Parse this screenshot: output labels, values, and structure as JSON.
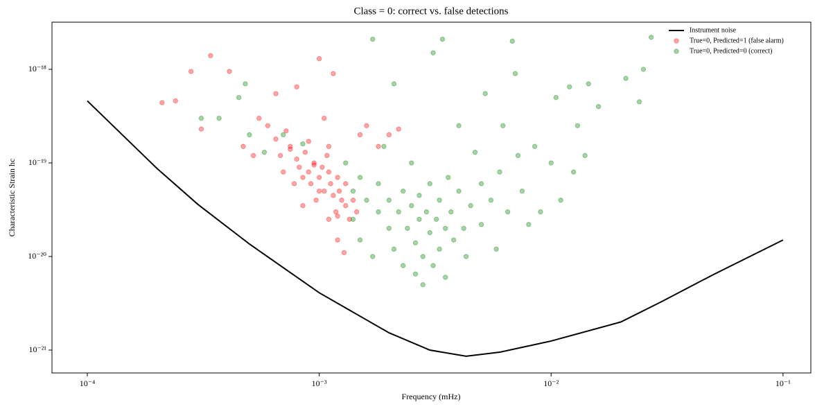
{
  "chart_data": {
    "type": "scatter",
    "title": "Class = 0: correct vs. false detections",
    "xlabel": "Frequency (mHz)",
    "ylabel": "Characteristic Strain hc",
    "xscale": "log",
    "yscale": "log",
    "xlim": [
      7.04e-05,
      0.1318
    ],
    "ylim": [
      5.7e-22,
      3.19e-18
    ],
    "xticks": [
      {
        "value": 0.0001,
        "label": "10⁻⁴"
      },
      {
        "value": 0.001,
        "label": "10⁻³"
      },
      {
        "value": 0.01,
        "label": "10⁻²"
      },
      {
        "value": 0.1,
        "label": "10⁻¹"
      }
    ],
    "yticks": [
      {
        "value": 1e-21,
        "label": "10⁻²¹"
      },
      {
        "value": 1e-20,
        "label": "10⁻²⁰"
      },
      {
        "value": 1e-19,
        "label": "10⁻¹⁹"
      },
      {
        "value": 1e-18,
        "label": "10⁻¹⁸"
      }
    ],
    "legend": "upper right",
    "series": [
      {
        "name": "Instrument noise",
        "type": "line",
        "color": "#000000",
        "x": [
          0.0001,
          0.0002,
          0.0003,
          0.0005,
          0.001,
          0.002,
          0.003,
          0.0043,
          0.006,
          0.01,
          0.02,
          0.03,
          0.05,
          0.1
        ],
        "values": [
          4.6e-19,
          8.7e-20,
          3.6e-20,
          1.36e-20,
          4.1e-21,
          1.53e-21,
          1e-21,
          8.6e-22,
          9.5e-22,
          1.25e-21,
          2e-21,
          3.3e-21,
          6.4e-21,
          1.5e-20
        ]
      },
      {
        "name": "True=0, Predicted=1 (false alarm)",
        "type": "scatter",
        "color": "#ff0000",
        "x": [
          0.00021,
          0.00024,
          0.00028,
          0.00031,
          0.00034,
          0.00041,
          0.00047,
          0.00052,
          0.00055,
          0.0006,
          0.00065,
          0.00068,
          0.0007,
          0.00072,
          0.00075,
          0.00078,
          0.0008,
          0.00082,
          0.00085,
          0.00087,
          0.0009,
          0.00092,
          0.00095,
          0.00097,
          0.001,
          0.001,
          0.00103,
          0.00105,
          0.00108,
          0.0011,
          0.0011,
          0.00112,
          0.00115,
          0.00118,
          0.0012,
          0.0012,
          0.00122,
          0.00125,
          0.00128,
          0.0013,
          0.0013,
          0.00135,
          0.0014,
          0.00145,
          0.0015,
          0.0016,
          0.0018,
          0.002,
          0.0022,
          0.00095,
          0.00085,
          0.00075,
          0.00065,
          0.0011,
          0.00105,
          0.0009,
          0.00115,
          0.0008,
          0.0012,
          0.001
        ],
        "values": [
          4.4e-19,
          4.6e-19,
          9.5e-19,
          2.3e-19,
          1.4e-18,
          9.5e-19,
          1.5e-19,
          1.2e-19,
          3e-19,
          2.5e-19,
          1.8e-19,
          1.2e-19,
          8e-20,
          2.2e-19,
          1.5e-19,
          6e-20,
          1.1e-19,
          9e-20,
          3.5e-20,
          1.3e-19,
          8e-20,
          6e-20,
          1e-19,
          4e-20,
          1.3e-18,
          7e-20,
          9e-20,
          5e-20,
          1.2e-19,
          8e-20,
          2.5e-20,
          6e-20,
          4.5e-20,
          3e-20,
          1.5e-20,
          7e-20,
          5e-20,
          4e-20,
          1.1e-20,
          6e-20,
          3.5e-20,
          2.5e-20,
          4e-20,
          3e-20,
          2e-19,
          2.5e-19,
          1.5e-19,
          2e-19,
          2.3e-19,
          9.5e-20,
          7e-20,
          1.4e-19,
          5.5e-19,
          1.5e-19,
          3e-19,
          1.7e-19,
          9e-19,
          6.5e-19,
          2.7e-20,
          5e-20
        ]
      },
      {
        "name": "True=0, Predicted=0 (correct)",
        "type": "scatter",
        "color": "#008000",
        "x": [
          0.00031,
          0.00037,
          0.00045,
          0.00048,
          0.0005,
          0.00058,
          0.0007,
          0.00085,
          0.0013,
          0.0014,
          0.0014,
          0.0015,
          0.0015,
          0.0016,
          0.0017,
          0.0017,
          0.0018,
          0.0018,
          0.0019,
          0.002,
          0.002,
          0.0021,
          0.0021,
          0.0022,
          0.0023,
          0.0023,
          0.0024,
          0.0025,
          0.0025,
          0.0026,
          0.0026,
          0.0027,
          0.0027,
          0.0028,
          0.0028,
          0.0029,
          0.003,
          0.003,
          0.0031,
          0.0031,
          0.0032,
          0.0033,
          0.0033,
          0.0034,
          0.0035,
          0.0035,
          0.0036,
          0.0037,
          0.0038,
          0.004,
          0.004,
          0.0042,
          0.0043,
          0.0045,
          0.0047,
          0.005,
          0.005,
          0.0052,
          0.0055,
          0.0058,
          0.006,
          0.0062,
          0.0065,
          0.0068,
          0.007,
          0.0072,
          0.0075,
          0.008,
          0.0085,
          0.009,
          0.01,
          0.0105,
          0.011,
          0.012,
          0.0125,
          0.013,
          0.014,
          0.0145,
          0.016,
          0.021,
          0.025,
          0.024,
          0.027
        ],
        "values": [
          3e-19,
          3e-19,
          5e-19,
          7e-19,
          2e-19,
          1.3e-19,
          2e-19,
          1.6e-19,
          1e-19,
          5e-20,
          2.5e-20,
          1.5e-20,
          7e-20,
          4e-20,
          2.1e-18,
          1e-20,
          3e-20,
          6e-20,
          1.5e-19,
          2e-20,
          4e-20,
          7e-19,
          1.2e-20,
          3e-20,
          8e-21,
          5e-20,
          2e-20,
          1e-19,
          3.5e-20,
          1.4e-20,
          6.5e-21,
          2.5e-20,
          4.5e-20,
          1e-20,
          5e-21,
          3e-20,
          1.8e-20,
          6e-20,
          1.5e-18,
          8e-21,
          2.5e-20,
          4e-20,
          1.2e-20,
          2.1e-18,
          2e-20,
          6e-21,
          7e-20,
          3e-20,
          1.5e-20,
          5e-20,
          2.5e-19,
          2e-20,
          1e-20,
          3.5e-20,
          1.3e-19,
          6e-20,
          2.2e-20,
          5.5e-19,
          4e-20,
          1.2e-20,
          8e-20,
          2.5e-19,
          3e-20,
          2e-18,
          9e-19,
          1.2e-19,
          5e-20,
          2.2e-20,
          1.5e-19,
          3e-20,
          1e-19,
          5e-19,
          4e-20,
          6.5e-19,
          8e-20,
          2.5e-19,
          1.2e-19,
          7e-19,
          4e-19,
          8e-19,
          1e-18,
          4.5e-19,
          2.2e-18
        ]
      }
    ]
  }
}
